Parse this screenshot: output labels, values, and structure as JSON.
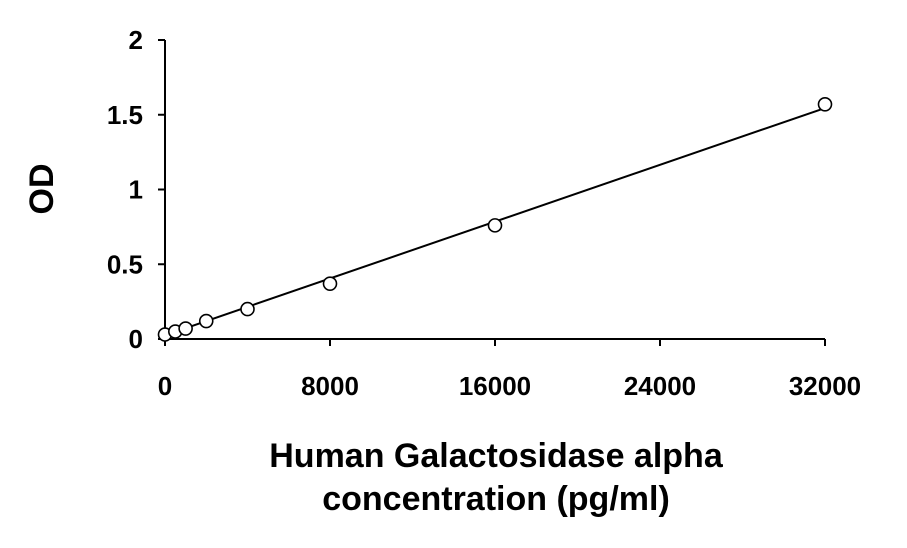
{
  "chart_data": {
    "type": "scatter",
    "ylabel": "OD",
    "xlabel_lines": [
      "Human Galactosidase alpha",
      "concentration (pg/ml)"
    ],
    "xlim": [
      0,
      32000
    ],
    "ylim": [
      0,
      2
    ],
    "x_ticks": [
      0,
      8000,
      16000,
      24000,
      32000
    ],
    "x_tick_labels": [
      "0",
      "8000",
      "16000",
      "24000",
      "32000"
    ],
    "y_ticks": [
      0,
      0.5,
      1,
      1.5,
      2
    ],
    "y_tick_labels": [
      "0",
      "0.5",
      "1",
      "1.5",
      "2"
    ],
    "grid": false,
    "legend": "none",
    "series": [
      {
        "marker": "open-circle",
        "x": [
          0,
          500,
          1000,
          2000,
          4000,
          8000,
          16000,
          32000
        ],
        "y": [
          0.03,
          0.05,
          0.07,
          0.12,
          0.2,
          0.37,
          0.76,
          1.57
        ]
      }
    ],
    "trendline": {
      "type": "linear",
      "x": [
        0,
        32000
      ],
      "y": [
        0.025,
        1.545
      ]
    },
    "colors": {
      "axis": "#000000",
      "marker_stroke": "#000000",
      "marker_fill": "#ffffff",
      "line": "#000000"
    }
  }
}
